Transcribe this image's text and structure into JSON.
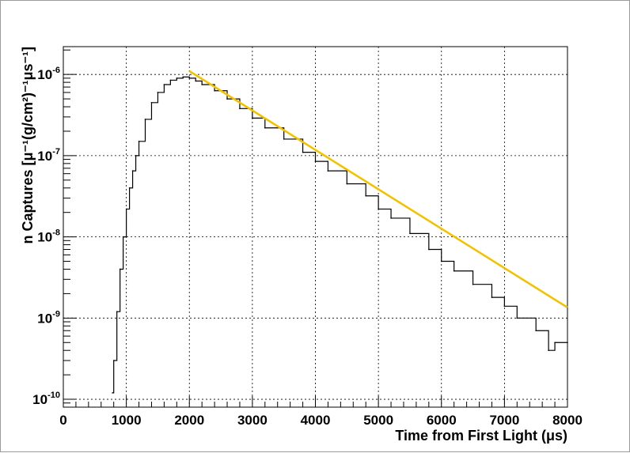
{
  "chart_data": {
    "type": "line",
    "xlabel": "Time from First Light (μs)",
    "ylabel": "n Captures [μ⁻¹(g/cm²)⁻¹μs⁻¹]",
    "x_range": [
      0,
      8000
    ],
    "y_range": [
      8e-11,
      2.2e-06
    ],
    "y_scale": "log",
    "grid": true,
    "x_ticks": [
      "0",
      "1000",
      "2000",
      "3000",
      "4000",
      "5000",
      "6000",
      "7000",
      "8000"
    ],
    "y_ticks": [
      {
        "base": "10",
        "exp": "-10",
        "value": 1e-10
      },
      {
        "base": "10",
        "exp": "-9",
        "value": 1e-09
      },
      {
        "base": "10",
        "exp": "-8",
        "value": 1e-08
      },
      {
        "base": "10",
        "exp": "-7",
        "value": 1e-07
      },
      {
        "base": "10",
        "exp": "-6",
        "value": 1e-06
      }
    ],
    "series": [
      {
        "style": "histogram",
        "color": "#000000",
        "x": [
          780,
          800,
          850,
          900,
          950,
          1000,
          1050,
          1100,
          1150,
          1200,
          1300,
          1400,
          1500,
          1600,
          1700,
          1800,
          1900,
          2000,
          2100,
          2200,
          2400,
          2600,
          2800,
          3000,
          3200,
          3500,
          3800,
          4000,
          4200,
          4500,
          4800,
          5000,
          5200,
          5500,
          5800,
          6000,
          6200,
          6500,
          6800,
          7000,
          7200,
          7500,
          7700,
          7800,
          8000
        ],
        "y": [
          1.2e-10,
          3e-10,
          1.2e-09,
          4e-09,
          1e-08,
          2.2e-08,
          4e-08,
          6.5e-08,
          1e-07,
          1.5e-07,
          2.8e-07,
          4.5e-07,
          6e-07,
          7.5e-07,
          8.5e-07,
          9e-07,
          9.3e-07,
          9e-07,
          8.3e-07,
          7.5e-07,
          6.3e-07,
          5e-07,
          3.8e-07,
          2.9e-07,
          2.2e-07,
          1.6e-07,
          1.1e-07,
          8.5e-08,
          6.5e-08,
          4.5e-08,
          3.2e-08,
          2.2e-08,
          1.7e-08,
          1.1e-08,
          7e-09,
          5e-09,
          3.8e-09,
          2.6e-09,
          1.8e-09,
          1.4e-09,
          1e-09,
          7e-10,
          4e-10,
          5e-10,
          5e-10
        ]
      },
      {
        "style": "fit",
        "color": "#f2c200",
        "x": [
          2000,
          8000
        ],
        "y": [
          1.1e-06,
          1.35e-09
        ]
      }
    ]
  }
}
